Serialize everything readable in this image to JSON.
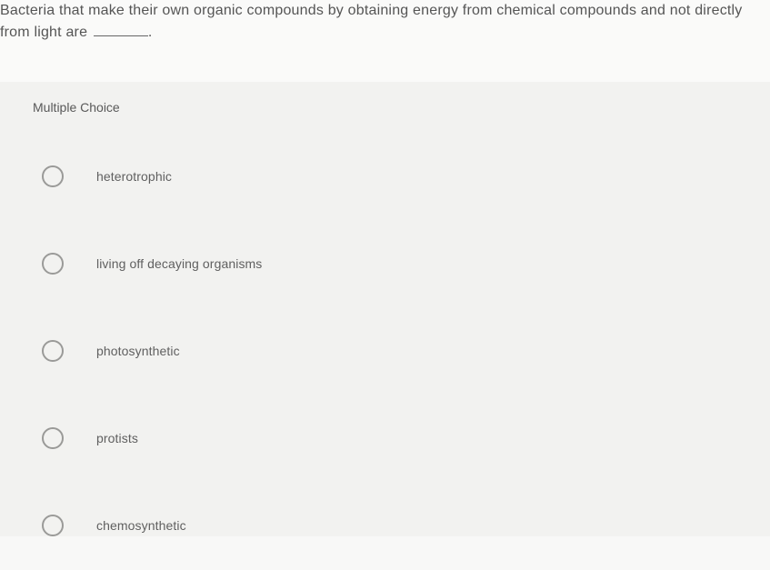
{
  "question": {
    "text_before_blank": "Bacteria that make their own organic compounds by obtaining energy from chemical compounds and not directly from light are ",
    "text_after_blank": "."
  },
  "choices_heading": "Multiple Choice",
  "choices": [
    {
      "label": "heterotrophic"
    },
    {
      "label": "living off decaying organisms"
    },
    {
      "label": "photosynthetic"
    },
    {
      "label": "protists"
    },
    {
      "label": "chemosynthetic"
    }
  ],
  "styling": {
    "background_color": "#f8f8f7",
    "question_bg": "#fafaf9",
    "choices_bg": "#f2f2f0",
    "text_color": "#555555",
    "heading_color": "#595959",
    "choice_text_color": "#606060",
    "radio_border": "#9a9a98",
    "question_fontsize": 16,
    "heading_fontsize": 14,
    "choice_fontsize": 14
  }
}
